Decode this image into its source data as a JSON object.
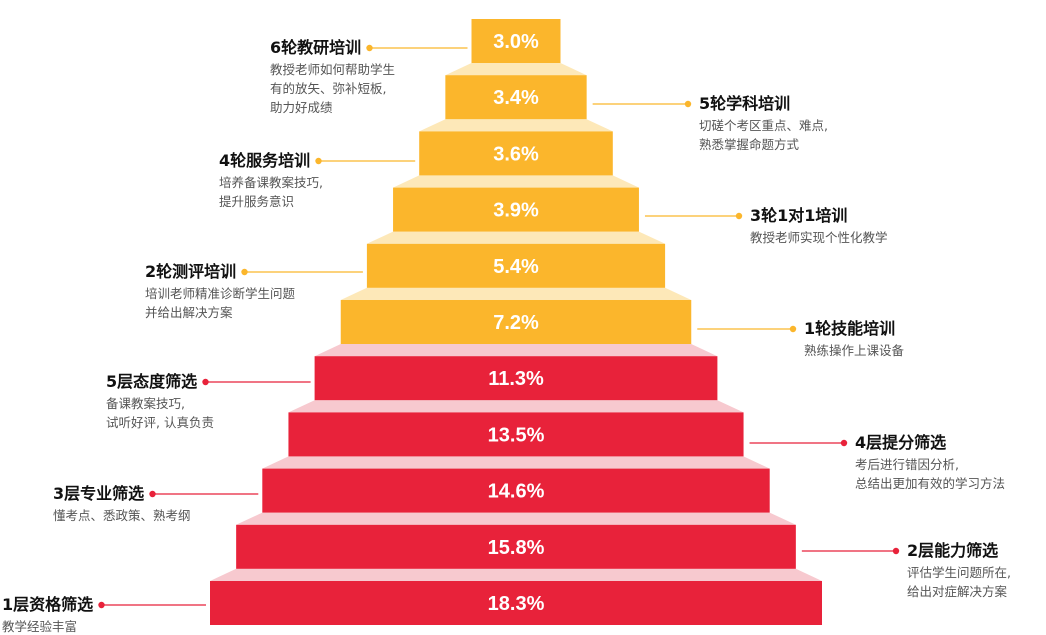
{
  "chart_data": {
    "type": "funnel",
    "levels": [
      {
        "value": "18.3%",
        "title": "1层资格筛选",
        "desc": [
          "教学经验丰富"
        ],
        "color": "#e8223a"
      },
      {
        "value": "15.8%",
        "title": "2层能力筛选",
        "desc": [
          "评估学生问题所在,",
          "给出对症解决方案"
        ],
        "color": "#e8223a"
      },
      {
        "value": "14.6%",
        "title": "3层专业筛选",
        "desc": [
          "懂考点、悉政策、熟考纲"
        ],
        "color": "#e8223a"
      },
      {
        "value": "13.5%",
        "title": "4层提分筛选",
        "desc": [
          "考后进行错因分析,",
          "总结出更加有效的学习方法"
        ],
        "color": "#e8223a"
      },
      {
        "value": "11.3%",
        "title": "5层态度筛选",
        "desc": [
          "备课教案技巧,",
          "试听好评, 认真负责"
        ],
        "color": "#e8223a"
      },
      {
        "value": "7.2%",
        "title": "1轮技能培训",
        "desc": [
          "熟练操作上课设备"
        ],
        "color": "#fbb62c"
      },
      {
        "value": "5.4%",
        "title": "2轮测评培训",
        "desc": [
          "培训老师精准诊断学生问题",
          "并给出解决方案"
        ],
        "color": "#fbb62c"
      },
      {
        "value": "3.9%",
        "title": "3轮1对1培训",
        "desc": [
          "教授老师实现个性化教学"
        ],
        "color": "#fbb62c"
      },
      {
        "value": "3.6%",
        "title": "4轮服务培训",
        "desc": [
          "培养备课教案技巧,",
          "提升服务意识"
        ],
        "color": "#fbb62c"
      },
      {
        "value": "3.4%",
        "title": "5轮学科培训",
        "desc": [
          "切磋个考区重点、难点,",
          "熟悉掌握命题方式"
        ],
        "color": "#fbb62c"
      },
      {
        "value": "3.0%",
        "title": "6轮教研培训",
        "desc": [
          "教授老师如何帮助学生",
          "有的放矢、弥补短板,",
          "助力好成绩"
        ],
        "color": "#fbb62c"
      }
    ]
  }
}
